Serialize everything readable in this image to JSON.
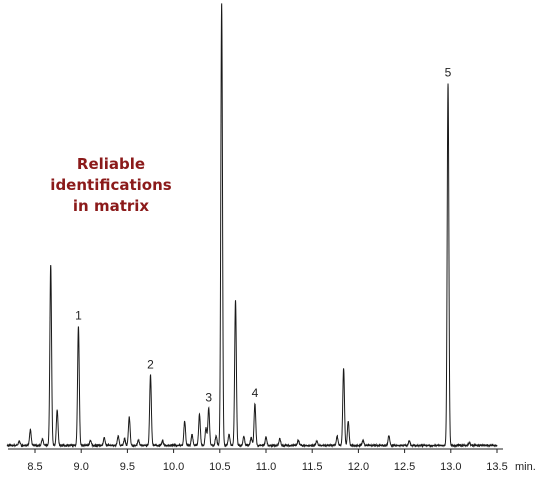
{
  "chart_data": {
    "type": "line",
    "title": "",
    "xlabel": "",
    "ylabel": "",
    "x_unit": "min.",
    "xlim": [
      8.2,
      13.5
    ],
    "ylim": [
      0,
      100
    ],
    "ticks": [
      "8.5",
      "9.0",
      "9.5",
      "10.0",
      "10.5",
      "11.0",
      "11.5",
      "12.0",
      "12.5",
      "13.0",
      "13.5"
    ],
    "tick_values": [
      8.5,
      9.0,
      9.5,
      10.0,
      10.5,
      11.0,
      11.5,
      12.0,
      12.5,
      13.0,
      13.5
    ],
    "grid": false,
    "legend": "none",
    "annotation": {
      "line1": "Reliable identifications",
      "line2": "in matrix",
      "color": "#8b1a1a"
    },
    "labeled_peaks": [
      {
        "label": "1",
        "x": 8.97,
        "y": 27
      },
      {
        "label": "2",
        "x": 9.75,
        "y": 16
      },
      {
        "label": "3",
        "x": 10.38,
        "y": 8.5
      },
      {
        "label": "4",
        "x": 10.88,
        "y": 9.5
      },
      {
        "label": "5",
        "x": 12.97,
        "y": 82
      }
    ],
    "peaks": [
      {
        "x": 8.33,
        "y": 1.0
      },
      {
        "x": 8.45,
        "y": 3.5
      },
      {
        "x": 8.58,
        "y": 1.5
      },
      {
        "x": 8.67,
        "y": 41
      },
      {
        "x": 8.74,
        "y": 8
      },
      {
        "x": 8.97,
        "y": 27
      },
      {
        "x": 9.1,
        "y": 1.2
      },
      {
        "x": 9.25,
        "y": 1.8
      },
      {
        "x": 9.4,
        "y": 2.2
      },
      {
        "x": 9.47,
        "y": 1.5
      },
      {
        "x": 9.52,
        "y": 6.5
      },
      {
        "x": 9.62,
        "y": 1.2
      },
      {
        "x": 9.75,
        "y": 16
      },
      {
        "x": 9.88,
        "y": 1.0
      },
      {
        "x": 10.12,
        "y": 5.5
      },
      {
        "x": 10.2,
        "y": 2.5
      },
      {
        "x": 10.28,
        "y": 7
      },
      {
        "x": 10.35,
        "y": 4
      },
      {
        "x": 10.38,
        "y": 8.5
      },
      {
        "x": 10.46,
        "y": 2.2
      },
      {
        "x": 10.52,
        "y": 100
      },
      {
        "x": 10.6,
        "y": 2.5
      },
      {
        "x": 10.67,
        "y": 33
      },
      {
        "x": 10.76,
        "y": 2.0
      },
      {
        "x": 10.84,
        "y": 1.8
      },
      {
        "x": 10.88,
        "y": 9.5
      },
      {
        "x": 11.0,
        "y": 1.8
      },
      {
        "x": 11.15,
        "y": 1.5
      },
      {
        "x": 11.35,
        "y": 1.2
      },
      {
        "x": 11.55,
        "y": 1.0
      },
      {
        "x": 11.77,
        "y": 2.0
      },
      {
        "x": 11.84,
        "y": 17.5
      },
      {
        "x": 11.89,
        "y": 5.5
      },
      {
        "x": 12.05,
        "y": 1.2
      },
      {
        "x": 12.33,
        "y": 2.2
      },
      {
        "x": 12.55,
        "y": 1.0
      },
      {
        "x": 12.97,
        "y": 82
      },
      {
        "x": 13.2,
        "y": 0.6
      }
    ]
  }
}
